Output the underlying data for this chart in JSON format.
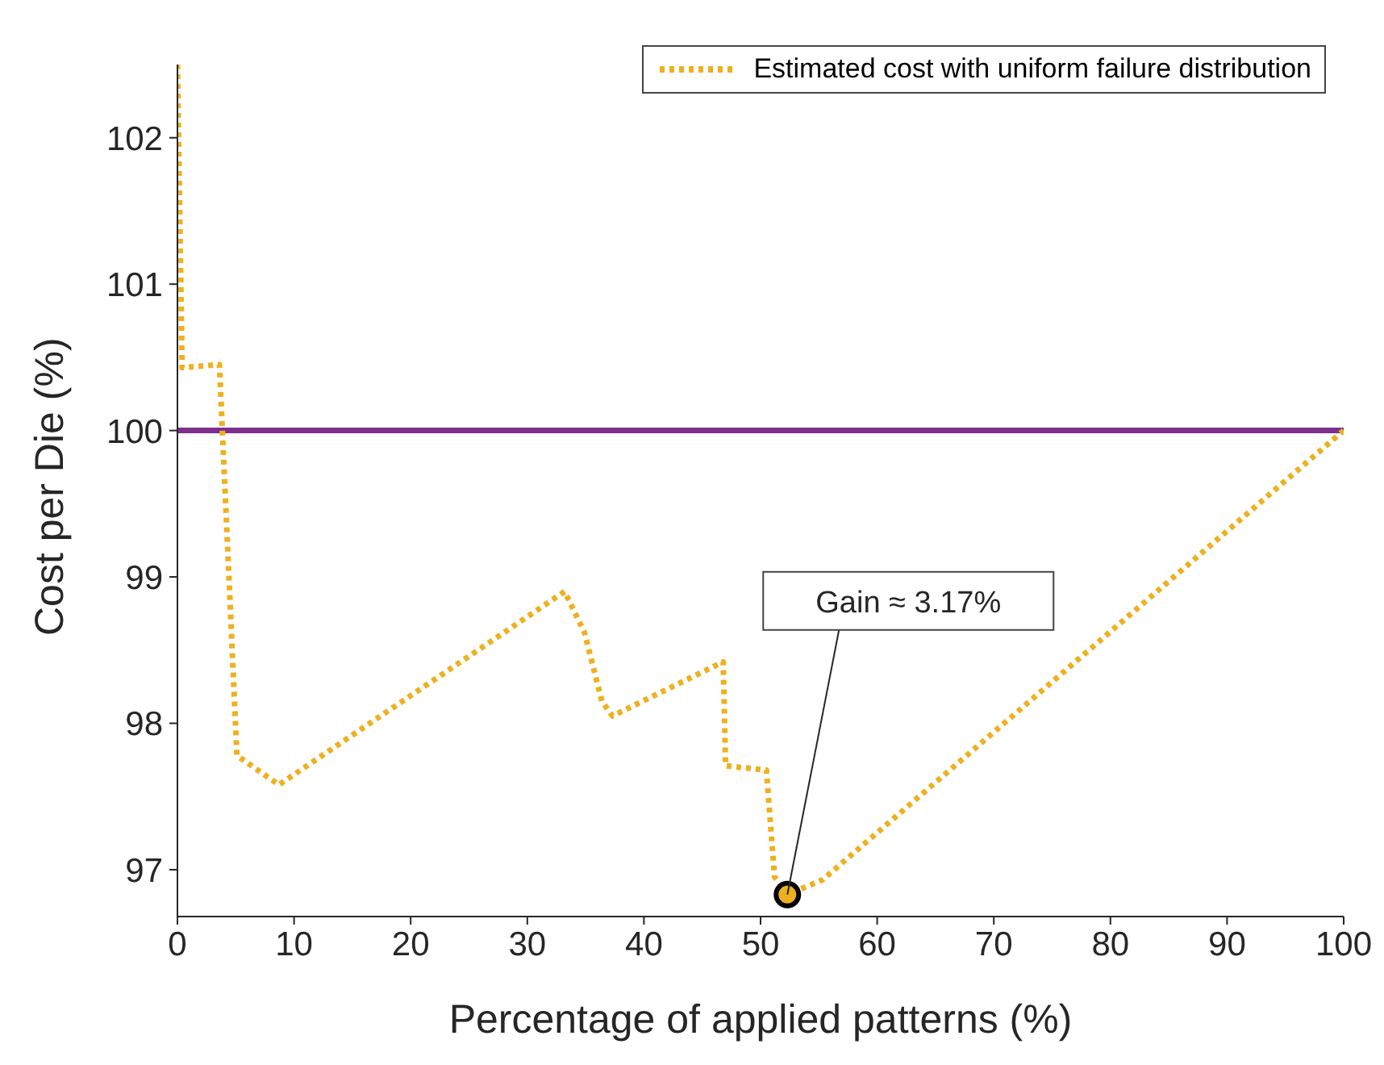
{
  "chart_data": {
    "type": "line",
    "xlabel": "Percentage of applied patterns (%)",
    "ylabel": "Cost per Die (%)",
    "xlim": [
      0,
      100
    ],
    "xticks": [
      0,
      10,
      20,
      30,
      40,
      50,
      60,
      70,
      80,
      90,
      100
    ],
    "ylim": [
      96.68,
      102.5
    ],
    "yticks": [
      97,
      98,
      99,
      100,
      101,
      102
    ],
    "series": [
      {
        "name": "Estimated cost with uniform failure distribution",
        "color": "#edb120",
        "line_style": "dotted",
        "marker": "none",
        "x": [
          0,
          0.4,
          3.6,
          5.1,
          8.7,
          33.2,
          34.9,
          36.4,
          37.3,
          46.8,
          47.0,
          50.5,
          51.2,
          52.3,
          55.3,
          100
        ],
        "values": [
          102.5,
          100.43,
          100.45,
          97.78,
          97.58,
          98.9,
          98.62,
          98.15,
          98.05,
          98.42,
          97.71,
          97.68,
          96.95,
          96.83,
          96.93,
          100
        ]
      },
      {
        "type": "scatter",
        "color": "#edb120",
        "marker": "circle",
        "x": [
          52.3
        ],
        "values": [
          96.83
        ]
      }
    ],
    "ref_lines": [
      {
        "axis": "y",
        "value": 100,
        "color": "#7e2f8e",
        "line_style": "solid"
      }
    ],
    "annotations": [
      {
        "text": "Gain ≈ 3.17%",
        "x": 52.3,
        "y": 96.83
      }
    ],
    "legend": "top right",
    "grid": false
  }
}
